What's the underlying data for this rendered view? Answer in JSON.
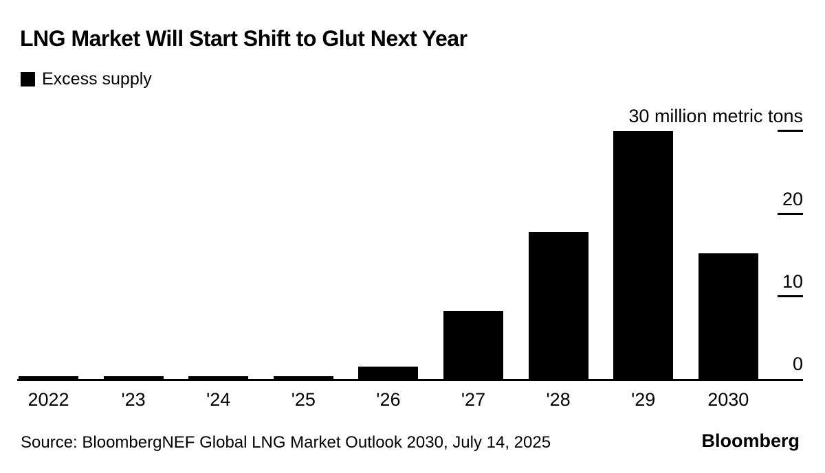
{
  "title": "LNG Market Will Start Shift to Glut Next Year",
  "legend": {
    "label": "Excess supply",
    "swatch_color": "#000000"
  },
  "source": "Source: BloombergNEF Global LNG Market Outlook 2030, July 14, 2025",
  "brand": "Bloomberg",
  "chart_data": {
    "type": "bar",
    "title": "LNG Market Will Start Shift to Glut Next Year",
    "series_name": "Excess supply",
    "categories": [
      "2022",
      "'23",
      "'24",
      "'25",
      "'26",
      "'27",
      "'28",
      "'29",
      "2030"
    ],
    "values": [
      0.3,
      0.3,
      0.3,
      0.3,
      1.5,
      8.2,
      17.8,
      30,
      15.2
    ],
    "unit": "million metric tons",
    "bar_color": "#000000",
    "grid": false,
    "legend_position": "top-left",
    "y_axis": {
      "side": "right",
      "ylim": [
        0,
        30
      ],
      "ticks": [
        {
          "value": 30,
          "label": "30 million metric tons",
          "has_tick_line": true
        },
        {
          "value": 20,
          "label": "20",
          "has_tick_line": true
        },
        {
          "value": 10,
          "label": "10",
          "has_tick_line": true
        },
        {
          "value": 0,
          "label": "0",
          "has_tick_line": false
        }
      ]
    }
  }
}
